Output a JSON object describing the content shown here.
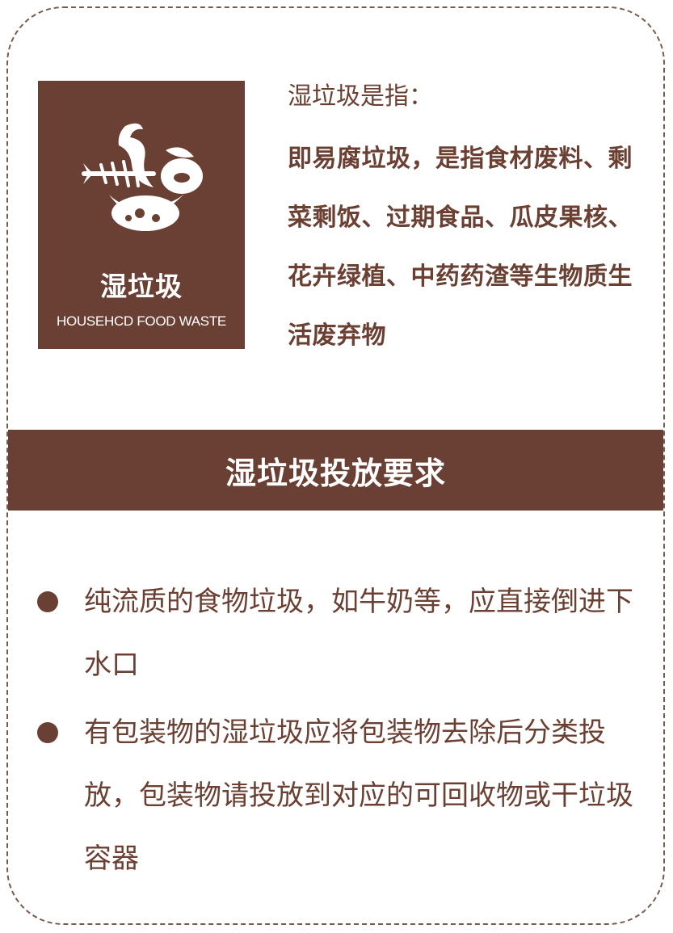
{
  "logo": {
    "icon": "food-waste-icon",
    "title": "湿垃圾",
    "subtitle": "HOUSEHCD FOOD WASTE"
  },
  "definition": {
    "heading": "湿垃圾是指：",
    "body": "即易腐垃圾，是指食材废料、剩菜剩饭、过期食品、瓜皮果核、花卉绿植、中药药渣等生物质生活废弃物"
  },
  "section": {
    "title": "湿垃圾投放要求"
  },
  "requirements": [
    {
      "text": "纯流质的食物垃圾，如牛奶等，应直接倒进下水口"
    },
    {
      "text": "有包装物的湿垃圾应将包装物去除后分类投放，包装物请投放到对应的可回收物或干垃圾容器"
    }
  ],
  "colors": {
    "brand_brown": "#6a4034",
    "text_brown": "#6b4033",
    "border": "#7a5a4e"
  }
}
